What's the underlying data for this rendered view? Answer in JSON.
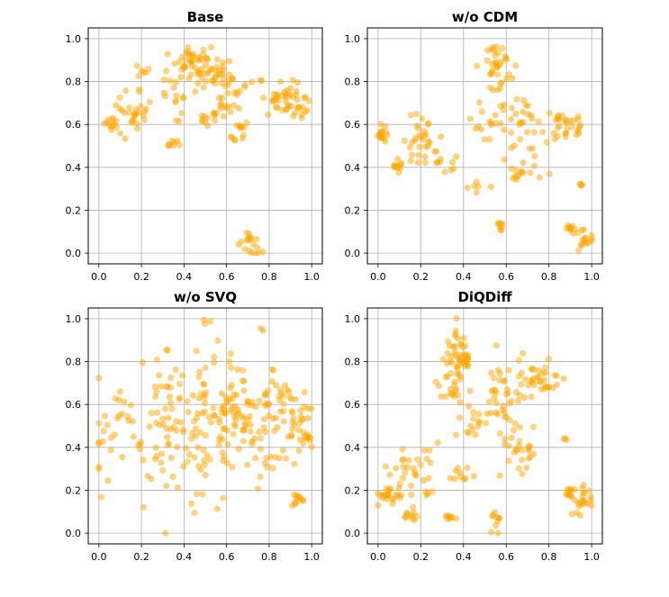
{
  "colors": {
    "point": "#FFA500",
    "grid": "#b0b0b0",
    "axes": "#000000"
  },
  "point_alpha": 0.5,
  "chart_data": [
    {
      "type": "scatter",
      "title": "Base",
      "xlim": [
        -0.05,
        1.05
      ],
      "ylim": [
        -0.05,
        1.05
      ],
      "xticks": [
        0.0,
        0.2,
        0.4,
        0.6,
        0.8,
        1.0
      ],
      "yticks": [
        0.0,
        0.2,
        0.4,
        0.6,
        0.8,
        1.0
      ],
      "xtick_labels": [
        "0.0",
        "0.2",
        "0.4",
        "0.6",
        "0.8",
        "1.0"
      ],
      "ytick_labels": [
        "0.0",
        "0.2",
        "0.4",
        "0.6",
        "0.8",
        "1.0"
      ],
      "grid": true,
      "xlabel": "",
      "ylabel": "",
      "clusters": [
        {
          "cx": 0.45,
          "cy": 0.88,
          "sx": 0.05,
          "sy": 0.04,
          "n": 40
        },
        {
          "cx": 0.55,
          "cy": 0.84,
          "sx": 0.04,
          "sy": 0.04,
          "n": 25
        },
        {
          "cx": 0.15,
          "cy": 0.65,
          "sx": 0.05,
          "sy": 0.05,
          "n": 30
        },
        {
          "cx": 0.05,
          "cy": 0.62,
          "sx": 0.03,
          "sy": 0.02,
          "n": 10
        },
        {
          "cx": 0.35,
          "cy": 0.77,
          "sx": 0.05,
          "sy": 0.06,
          "n": 20
        },
        {
          "cx": 0.62,
          "cy": 0.74,
          "sx": 0.07,
          "sy": 0.08,
          "n": 30
        },
        {
          "cx": 0.86,
          "cy": 0.73,
          "sx": 0.05,
          "sy": 0.05,
          "n": 35
        },
        {
          "cx": 0.95,
          "cy": 0.68,
          "sx": 0.03,
          "sy": 0.03,
          "n": 15
        },
        {
          "cx": 0.52,
          "cy": 0.62,
          "sx": 0.03,
          "sy": 0.03,
          "n": 10
        },
        {
          "cx": 0.65,
          "cy": 0.58,
          "sx": 0.03,
          "sy": 0.03,
          "n": 12
        },
        {
          "cx": 0.36,
          "cy": 0.51,
          "sx": 0.015,
          "sy": 0.01,
          "n": 8
        },
        {
          "cx": 0.2,
          "cy": 0.85,
          "sx": 0.02,
          "sy": 0.02,
          "n": 6
        },
        {
          "cx": 0.71,
          "cy": 0.05,
          "sx": 0.03,
          "sy": 0.03,
          "n": 18
        }
      ]
    },
    {
      "type": "scatter",
      "title": "w/o CDM",
      "xlim": [
        -0.05,
        1.05
      ],
      "ylim": [
        -0.05,
        1.05
      ],
      "xticks": [
        0.0,
        0.2,
        0.4,
        0.6,
        0.8,
        1.0
      ],
      "yticks": [
        0.0,
        0.2,
        0.4,
        0.6,
        0.8,
        1.0
      ],
      "xtick_labels": [
        "0.0",
        "0.2",
        "0.4",
        "0.6",
        "0.8",
        "1.0"
      ],
      "ytick_labels": [
        "0.0",
        "0.2",
        "0.4",
        "0.6",
        "0.8",
        "1.0"
      ],
      "grid": true,
      "xlabel": "",
      "ylabel": "",
      "clusters": [
        {
          "cx": 0.57,
          "cy": 0.87,
          "sx": 0.04,
          "sy": 0.05,
          "n": 35
        },
        {
          "cx": 0.02,
          "cy": 0.56,
          "sx": 0.02,
          "sy": 0.02,
          "n": 15
        },
        {
          "cx": 0.09,
          "cy": 0.41,
          "sx": 0.02,
          "sy": 0.015,
          "n": 12
        },
        {
          "cx": 0.2,
          "cy": 0.55,
          "sx": 0.06,
          "sy": 0.05,
          "n": 25
        },
        {
          "cx": 0.33,
          "cy": 0.46,
          "sx": 0.06,
          "sy": 0.04,
          "n": 15
        },
        {
          "cx": 0.46,
          "cy": 0.32,
          "sx": 0.03,
          "sy": 0.02,
          "n": 6
        },
        {
          "cx": 0.53,
          "cy": 0.62,
          "sx": 0.06,
          "sy": 0.06,
          "n": 20
        },
        {
          "cx": 0.7,
          "cy": 0.55,
          "sx": 0.06,
          "sy": 0.08,
          "n": 30
        },
        {
          "cx": 0.67,
          "cy": 0.37,
          "sx": 0.04,
          "sy": 0.03,
          "n": 12
        },
        {
          "cx": 0.88,
          "cy": 0.6,
          "sx": 0.05,
          "sy": 0.04,
          "n": 30
        },
        {
          "cx": 0.58,
          "cy": 0.12,
          "sx": 0.01,
          "sy": 0.02,
          "n": 8
        },
        {
          "cx": 0.91,
          "cy": 0.11,
          "sx": 0.015,
          "sy": 0.015,
          "n": 10
        },
        {
          "cx": 0.97,
          "cy": 0.06,
          "sx": 0.02,
          "sy": 0.03,
          "n": 15
        },
        {
          "cx": 0.95,
          "cy": 0.32,
          "sx": 0.005,
          "sy": 0.005,
          "n": 4
        }
      ]
    },
    {
      "type": "scatter",
      "title": "w/o SVQ",
      "xlim": [
        -0.05,
        1.05
      ],
      "ylim": [
        -0.05,
        1.05
      ],
      "xticks": [
        0.0,
        0.2,
        0.4,
        0.6,
        0.8,
        1.0
      ],
      "yticks": [
        0.0,
        0.2,
        0.4,
        0.6,
        0.8,
        1.0
      ],
      "xtick_labels": [
        "0.0",
        "0.2",
        "0.4",
        "0.6",
        "0.8",
        "1.0"
      ],
      "ytick_labels": [
        "0.0",
        "0.2",
        "0.4",
        "0.6",
        "0.8",
        "1.0"
      ],
      "grid": true,
      "xlabel": "",
      "ylabel": "",
      "clusters": [
        {
          "cx": 0.4,
          "cy": 0.48,
          "sx": 0.2,
          "sy": 0.18,
          "n": 180
        },
        {
          "cx": 0.72,
          "cy": 0.55,
          "sx": 0.12,
          "sy": 0.13,
          "n": 80
        },
        {
          "cx": 0.88,
          "cy": 0.62,
          "sx": 0.07,
          "sy": 0.08,
          "n": 30
        },
        {
          "cx": 0.97,
          "cy": 0.44,
          "sx": 0.015,
          "sy": 0.015,
          "n": 12
        },
        {
          "cx": 0.93,
          "cy": 0.16,
          "sx": 0.015,
          "sy": 0.015,
          "n": 12
        },
        {
          "cx": 0.52,
          "cy": 0.98,
          "sx": 0.01,
          "sy": 0.01,
          "n": 3
        },
        {
          "cx": 0.77,
          "cy": 0.94,
          "sx": 0.01,
          "sy": 0.01,
          "n": 2
        }
      ]
    },
    {
      "type": "scatter",
      "title": "DiQDiff",
      "xlim": [
        -0.05,
        1.05
      ],
      "ylim": [
        -0.05,
        1.05
      ],
      "xticks": [
        0.0,
        0.2,
        0.4,
        0.6,
        0.8,
        1.0
      ],
      "yticks": [
        0.0,
        0.2,
        0.4,
        0.6,
        0.8,
        1.0
      ],
      "xtick_labels": [
        "0.0",
        "0.2",
        "0.4",
        "0.6",
        "0.8",
        "1.0"
      ],
      "ytick_labels": [
        "0.0",
        "0.2",
        "0.4",
        "0.6",
        "0.8",
        "1.0"
      ],
      "grid": true,
      "xlabel": "",
      "ylabel": "",
      "clusters": [
        {
          "cx": 0.38,
          "cy": 0.84,
          "sx": 0.03,
          "sy": 0.07,
          "n": 50
        },
        {
          "cx": 0.34,
          "cy": 0.7,
          "sx": 0.04,
          "sy": 0.05,
          "n": 15
        },
        {
          "cx": 0.77,
          "cy": 0.72,
          "sx": 0.04,
          "sy": 0.04,
          "n": 30
        },
        {
          "cx": 0.6,
          "cy": 0.65,
          "sx": 0.06,
          "sy": 0.1,
          "n": 45
        },
        {
          "cx": 0.45,
          "cy": 0.5,
          "sx": 0.04,
          "sy": 0.05,
          "n": 15
        },
        {
          "cx": 0.65,
          "cy": 0.38,
          "sx": 0.04,
          "sy": 0.05,
          "n": 25
        },
        {
          "cx": 0.05,
          "cy": 0.18,
          "sx": 0.03,
          "sy": 0.03,
          "n": 20
        },
        {
          "cx": 0.18,
          "cy": 0.3,
          "sx": 0.06,
          "sy": 0.07,
          "n": 35
        },
        {
          "cx": 0.38,
          "cy": 0.26,
          "sx": 0.03,
          "sy": 0.03,
          "n": 10
        },
        {
          "cx": 0.15,
          "cy": 0.08,
          "sx": 0.015,
          "sy": 0.01,
          "n": 10
        },
        {
          "cx": 0.34,
          "cy": 0.08,
          "sx": 0.015,
          "sy": 0.01,
          "n": 8
        },
        {
          "cx": 0.54,
          "cy": 0.05,
          "sx": 0.015,
          "sy": 0.025,
          "n": 10
        },
        {
          "cx": 0.89,
          "cy": 0.19,
          "sx": 0.015,
          "sy": 0.015,
          "n": 10
        },
        {
          "cx": 0.96,
          "cy": 0.15,
          "sx": 0.02,
          "sy": 0.04,
          "n": 22
        },
        {
          "cx": 0.88,
          "cy": 0.44,
          "sx": 0.005,
          "sy": 0.005,
          "n": 3
        }
      ]
    }
  ]
}
